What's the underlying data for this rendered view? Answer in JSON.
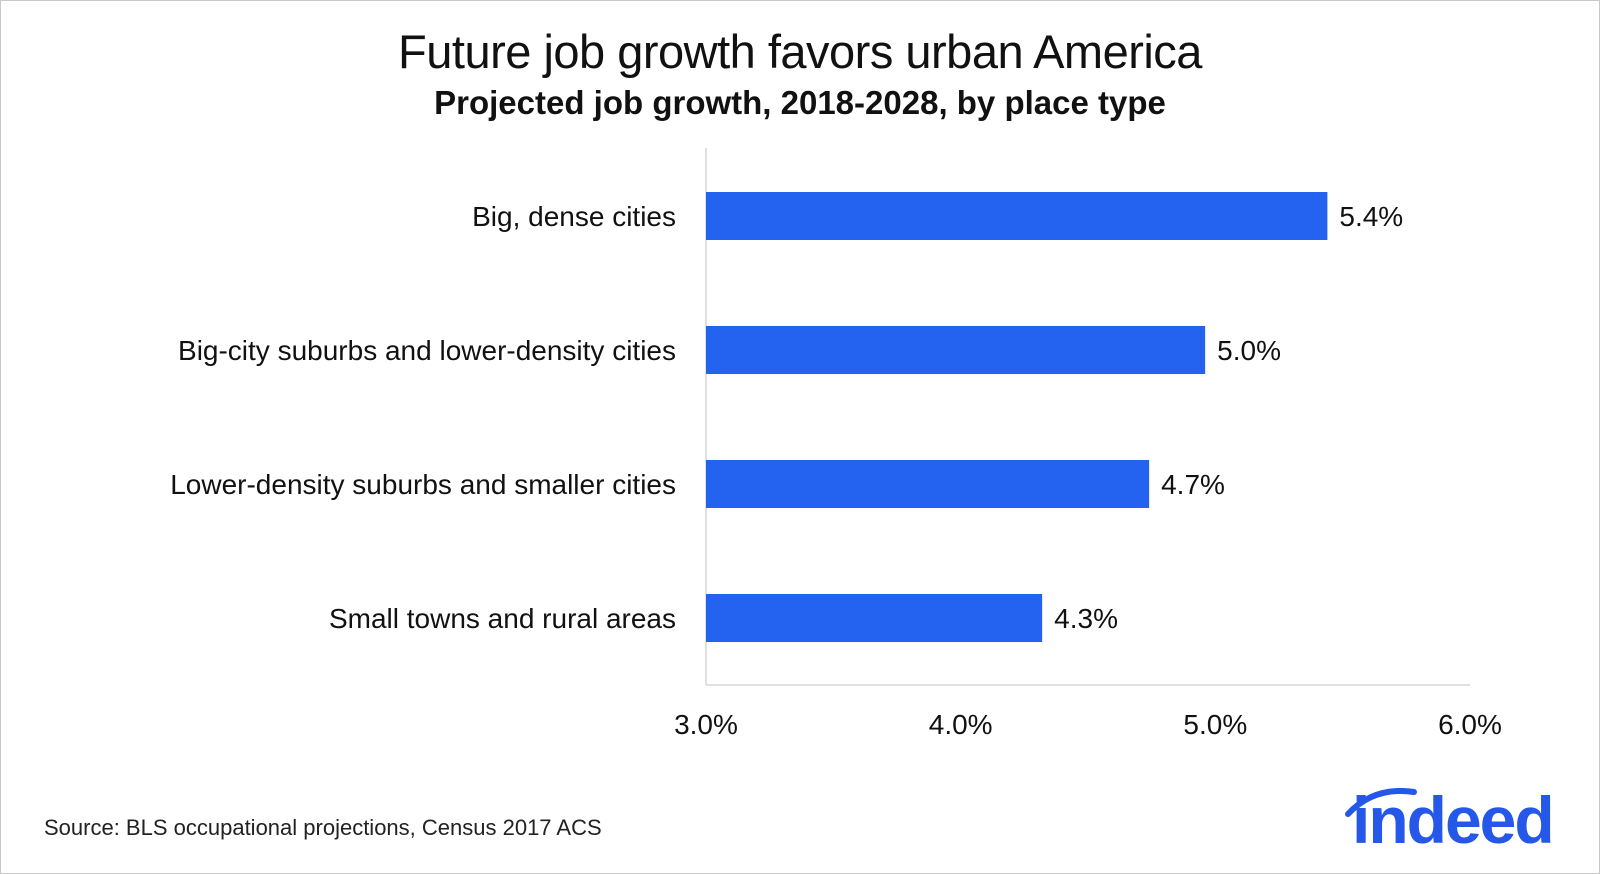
{
  "chart_data": {
    "type": "bar",
    "orientation": "horizontal",
    "title": "Future job growth favors urban America",
    "subtitle": "Projected job growth, 2018-2028, by place type",
    "categories": [
      "Big, dense cities",
      "Big-city suburbs and lower-density cities",
      "Lower-density suburbs and smaller cities",
      "Small towns and rural areas"
    ],
    "values": [
      5.44,
      4.96,
      4.74,
      4.32
    ],
    "value_labels": [
      "5.4%",
      "5.0%",
      "4.7%",
      "4.3%"
    ],
    "xlim": [
      3.0,
      6.0
    ],
    "xticks": [
      3.0,
      4.0,
      5.0,
      6.0
    ],
    "xtick_labels": [
      "3.0%",
      "4.0%",
      "5.0%",
      "6.0%"
    ],
    "xlabel": "",
    "ylabel": "",
    "grid": false,
    "bar_color": "#2463f0"
  },
  "footer": {
    "source": "Source: BLS occupational projections, Census 2017 ACS"
  },
  "logo": {
    "text": "indeed",
    "color": "#2557e8"
  }
}
